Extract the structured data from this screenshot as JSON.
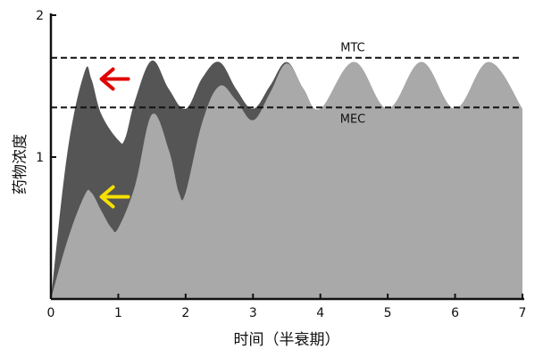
{
  "chart_data": {
    "type": "area",
    "title": "",
    "xlabel": "时间（半衰期）",
    "ylabel": "药物浓度",
    "xlim": [
      0,
      7
    ],
    "ylim": [
      0,
      2
    ],
    "xticks": [
      "0",
      "1",
      "2",
      "3",
      "4",
      "5",
      "6",
      "7"
    ],
    "yticks": [
      "1",
      "2"
    ],
    "grid": false,
    "series": [
      {
        "color": "#555555",
        "x": [
          0,
          0.25,
          0.5,
          0.6,
          0.75,
          1.0,
          1.1,
          1.25,
          1.5,
          1.75,
          2.0,
          2.25,
          2.5,
          2.75,
          3.0,
          3.25,
          3.5,
          3.75,
          4.0,
          4.5,
          5.0,
          5.5,
          6.0,
          6.5,
          7.0
        ],
        "y": [
          0,
          1.05,
          1.6,
          1.55,
          1.3,
          1.12,
          1.13,
          1.4,
          1.68,
          1.48,
          1.34,
          1.56,
          1.67,
          1.48,
          1.34,
          1.5,
          1.67,
          1.48,
          1.34,
          1.67,
          1.34,
          1.67,
          1.34,
          1.67,
          1.34
        ]
      },
      {
        "color": "#a9a9a9",
        "x": [
          0,
          0.25,
          0.5,
          0.6,
          0.75,
          0.9,
          1.0,
          1.25,
          1.5,
          1.75,
          1.9,
          2.0,
          2.25,
          2.5,
          2.75,
          3.0,
          3.25,
          3.5,
          3.75,
          4.0,
          4.5,
          5.0,
          5.5,
          6.0,
          6.5,
          7.0
        ],
        "y": [
          0,
          0.42,
          0.73,
          0.75,
          0.62,
          0.5,
          0.5,
          0.8,
          1.3,
          1.05,
          0.75,
          0.75,
          1.25,
          1.5,
          1.4,
          1.26,
          1.45,
          1.66,
          1.48,
          1.34,
          1.67,
          1.34,
          1.67,
          1.34,
          1.67,
          1.34
        ]
      }
    ],
    "reference_lines": [
      {
        "label": "MTC",
        "y": 1.7
      },
      {
        "label": "MEC",
        "y": 1.35
      }
    ],
    "annotations": [
      {
        "type": "arrow",
        "color": "#e00000",
        "x": 0.75,
        "y": 1.55
      },
      {
        "type": "arrow",
        "color": "#f5e000",
        "x": 0.75,
        "y": 0.72
      }
    ]
  }
}
